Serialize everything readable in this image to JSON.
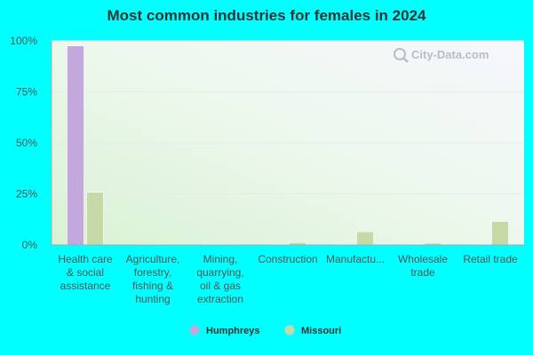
{
  "chart_data": {
    "type": "bar",
    "title": "Most common industries for females in 2024",
    "categories": [
      [
        "Health care",
        "& social",
        "assistance"
      ],
      [
        "Agriculture,",
        "forestry,",
        "fishing &",
        "hunting"
      ],
      [
        "Mining,",
        "quarrying,",
        "oil & gas",
        "extraction"
      ],
      [
        "Construction"
      ],
      [
        "Manufactu..."
      ],
      [
        "Wholesale",
        "trade"
      ],
      [
        "Retail trade"
      ]
    ],
    "series": [
      {
        "name": "Humphreys",
        "color": "#c3a8dd",
        "values": [
          97.5,
          0,
          0,
          0,
          0,
          0,
          0
        ]
      },
      {
        "name": "Missouri",
        "color": "#c8d9a8",
        "values": [
          25.8,
          0.4,
          0.2,
          1.2,
          6.5,
          0.9,
          11.5
        ]
      }
    ],
    "yticks": [
      "0%",
      "25%",
      "50%",
      "75%",
      "100%"
    ],
    "ylim": [
      0,
      100
    ],
    "legend_position": "bottom",
    "grid": true
  },
  "watermark": {
    "text": "City-Data.com",
    "icon": "magnifier-icon"
  }
}
